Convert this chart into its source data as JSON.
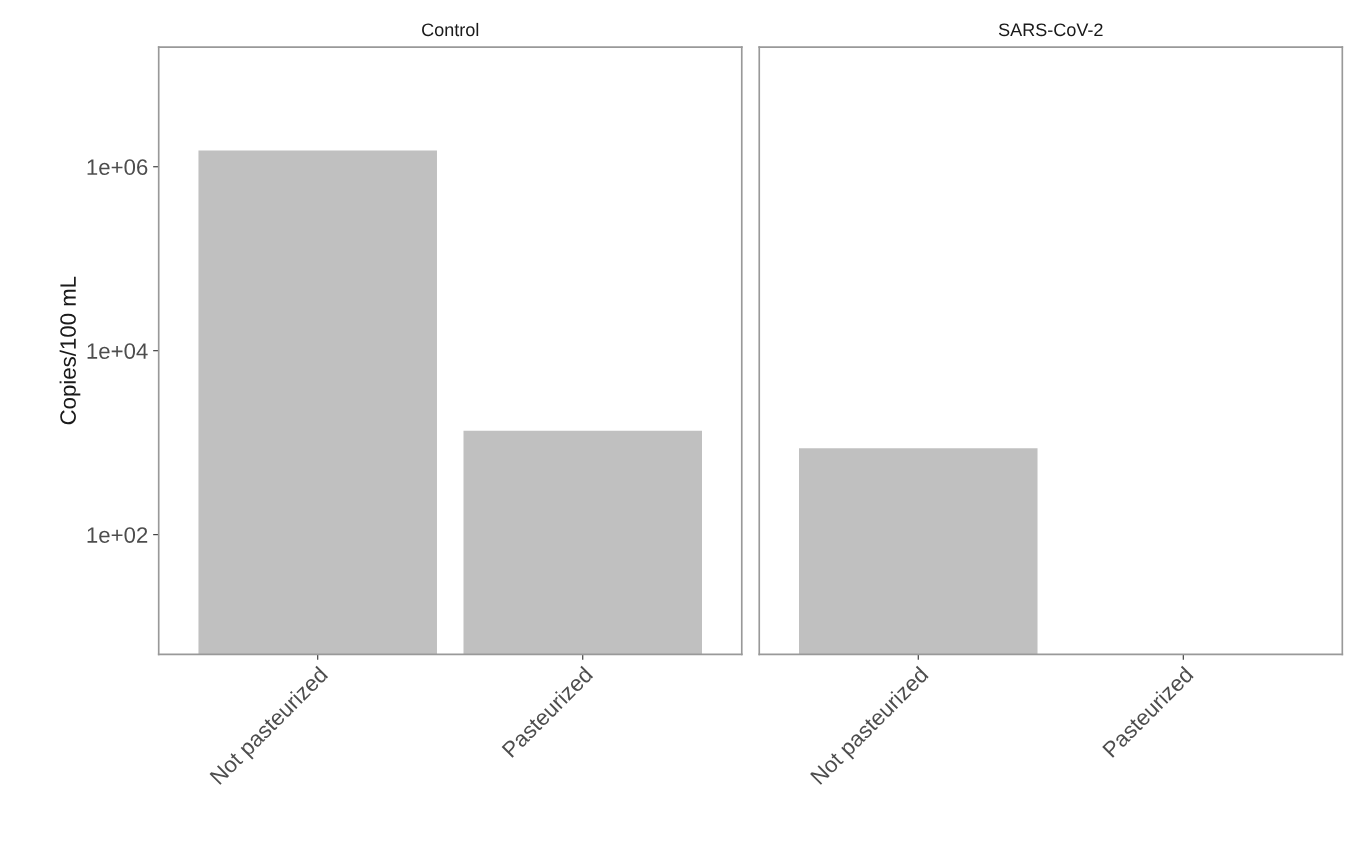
{
  "chart_data": [
    {
      "type": "bar",
      "title": "Control",
      "ylabel": "Copies/100 mL",
      "categories": [
        "Not pasteurized",
        "Pasteurized"
      ],
      "values": [
        1500000,
        1350
      ],
      "color": "#c0c0c0",
      "log": true,
      "ylim": [
        5,
        20000000
      ],
      "yticks": [
        {
          "value": 100,
          "label": "1e+02"
        },
        {
          "value": 10000,
          "label": "1e+04"
        },
        {
          "value": 1000000,
          "label": "1e+06"
        }
      ],
      "grid": false
    },
    {
      "type": "bar",
      "title": "SARS-CoV-2",
      "categories": [
        "Not pasteurized",
        "Pasteurized"
      ],
      "values": [
        870,
        null
      ],
      "color": "#c0c0c0",
      "log": true,
      "ylim": [
        5,
        20000000
      ],
      "grid": false,
      "tick_labels": "x"
    }
  ]
}
